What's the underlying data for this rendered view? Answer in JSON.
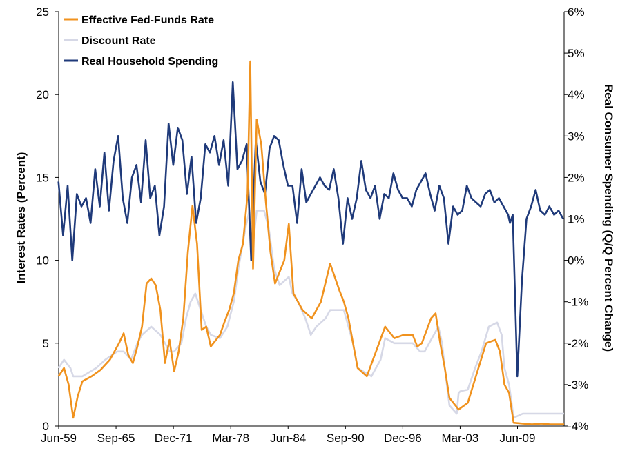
{
  "chart_data": {
    "type": "line",
    "title": "",
    "x_tick_labels": [
      "Jun-59",
      "Sep-65",
      "Dec-71",
      "Mar-78",
      "Jun-84",
      "Sep-90",
      "Dec-96",
      "Mar-03",
      "Jun-09"
    ],
    "x_range": [
      1959.42,
      2014.5
    ],
    "ylabel_left": "Interest Rates (Percent)",
    "ylabel_right": "Real Consumer Spending (Q/Q Percent Change)",
    "ylim_left": [
      0,
      25
    ],
    "ylim_right": [
      -4,
      6
    ],
    "y_ticks_left": [
      "0",
      "5",
      "10",
      "15",
      "20",
      "25"
    ],
    "y_ticks_right": [
      "-4%",
      "-3%",
      "-2%",
      "-1%",
      "0%",
      "1%",
      "2%",
      "3%",
      "4%",
      "5%",
      "6%"
    ],
    "grid": false,
    "legend_position": "top-left",
    "series": [
      {
        "name": "Effective Fed-Funds Rate",
        "axis": "left",
        "color": "#f0921e",
        "x": [
          1959.4,
          1960.0,
          1960.5,
          1961.0,
          1961.5,
          1962.0,
          1963.0,
          1964.0,
          1965.0,
          1965.5,
          1966.0,
          1966.5,
          1967.0,
          1967.5,
          1968.0,
          1968.5,
          1969.0,
          1969.5,
          1970.0,
          1970.5,
          1971.0,
          1971.5,
          1972.0,
          1972.5,
          1973.0,
          1973.5,
          1974.0,
          1974.5,
          1975.0,
          1975.5,
          1976.0,
          1977.0,
          1977.5,
          1978.0,
          1978.5,
          1979.0,
          1979.5,
          1980.0,
          1980.3,
          1980.6,
          1981.0,
          1981.5,
          1982.0,
          1982.5,
          1983.0,
          1983.5,
          1984.0,
          1984.5,
          1985.0,
          1986.0,
          1987.0,
          1988.0,
          1989.0,
          1989.5,
          1990.0,
          1990.5,
          1991.0,
          1991.5,
          1992.0,
          1993.0,
          1994.0,
          1995.0,
          1996.0,
          1997.0,
          1998.0,
          1998.5,
          1999.0,
          2000.0,
          2000.5,
          2001.0,
          2001.5,
          2002.0,
          2003.0,
          2004.0,
          2005.0,
          2006.0,
          2007.0,
          2007.5,
          2008.0,
          2008.5,
          2009.0,
          2010.0,
          2011.0,
          2012.0,
          2013.0,
          2014.0,
          2014.5
        ],
        "values": [
          3.0,
          3.5,
          2.5,
          0.5,
          1.8,
          2.7,
          3.0,
          3.4,
          4.0,
          4.5,
          5.0,
          5.6,
          4.3,
          3.8,
          4.8,
          6.0,
          8.6,
          8.9,
          8.5,
          7.0,
          3.8,
          5.2,
          3.3,
          4.5,
          6.5,
          10.5,
          13.3,
          11.0,
          5.8,
          6.0,
          4.8,
          5.5,
          6.3,
          7.0,
          8.0,
          10.0,
          11.0,
          14.0,
          22.0,
          9.5,
          18.5,
          17.0,
          13.5,
          10.5,
          8.6,
          9.3,
          10.0,
          12.2,
          8.0,
          7.0,
          6.5,
          7.5,
          9.8,
          9.0,
          8.2,
          7.5,
          6.5,
          5.0,
          3.5,
          3.0,
          4.5,
          6.0,
          5.3,
          5.5,
          5.5,
          4.8,
          5.0,
          6.5,
          6.8,
          5.0,
          3.5,
          1.7,
          1.0,
          1.4,
          3.2,
          5.0,
          5.2,
          4.5,
          2.5,
          2.0,
          0.2,
          0.15,
          0.1,
          0.15,
          0.1,
          0.1,
          0.1
        ]
      },
      {
        "name": "Discount Rate",
        "axis": "left",
        "color": "#d6d8e6",
        "x": [
          1959.4,
          1960.0,
          1960.7,
          1961.0,
          1962.0,
          1963.5,
          1964.5,
          1965.8,
          1966.5,
          1967.3,
          1968.0,
          1968.5,
          1969.5,
          1970.5,
          1971.0,
          1971.5,
          1972.0,
          1972.8,
          1973.3,
          1973.8,
          1974.3,
          1974.9,
          1975.5,
          1976.0,
          1977.0,
          1977.8,
          1978.5,
          1979.0,
          1979.8,
          1980.2,
          1980.6,
          1981.0,
          1981.8,
          1982.3,
          1982.9,
          1983.5,
          1984.5,
          1984.9,
          1985.5,
          1986.3,
          1986.9,
          1987.5,
          1988.5,
          1989.0,
          1989.5,
          1990.5,
          1991.0,
          1991.5,
          1992.0,
          1993.5,
          1994.5,
          1995.0,
          1996.0,
          1997.0,
          1998.0,
          1998.8,
          1999.3,
          1999.8,
          2000.3,
          2000.8,
          2001.2,
          2001.5,
          2002.0,
          2002.8,
          2003.0,
          2003.2,
          2004.0,
          2004.8,
          2005.5,
          2006.3,
          2007.2,
          2007.7,
          2008.0,
          2008.5,
          2009.0,
          2010.0,
          2010.5,
          2014.5
        ],
        "values": [
          3.5,
          4.0,
          3.5,
          3.0,
          3.0,
          3.5,
          4.0,
          4.5,
          4.5,
          4.0,
          5.0,
          5.5,
          6.0,
          5.5,
          5.0,
          4.5,
          4.5,
          5.0,
          6.5,
          7.5,
          8.0,
          7.0,
          6.0,
          5.5,
          5.3,
          6.0,
          7.5,
          9.5,
          12.0,
          13.0,
          11.0,
          13.0,
          13.0,
          12.0,
          9.5,
          8.5,
          9.0,
          8.0,
          7.5,
          6.5,
          5.5,
          6.0,
          6.5,
          7.0,
          7.0,
          7.0,
          6.0,
          5.0,
          3.5,
          3.0,
          4.0,
          5.3,
          5.0,
          5.0,
          5.0,
          4.5,
          4.5,
          5.0,
          5.5,
          6.0,
          5.0,
          3.5,
          1.25,
          0.75,
          2.0,
          2.1,
          2.2,
          3.5,
          4.5,
          6.0,
          6.25,
          5.5,
          3.5,
          2.5,
          0.5,
          0.75,
          0.75,
          0.75
        ]
      },
      {
        "name": "Real Household Spending",
        "axis": "right",
        "color": "#1f3a7a",
        "x": [
          1959.4,
          1959.9,
          1960.4,
          1960.9,
          1961.4,
          1961.9,
          1962.4,
          1962.9,
          1963.4,
          1963.9,
          1964.4,
          1964.9,
          1965.4,
          1965.9,
          1966.4,
          1966.9,
          1967.4,
          1967.9,
          1968.4,
          1968.9,
          1969.4,
          1969.9,
          1970.4,
          1970.9,
          1971.4,
          1971.9,
          1972.4,
          1972.9,
          1973.4,
          1973.9,
          1974.4,
          1974.9,
          1975.4,
          1975.9,
          1976.4,
          1976.9,
          1977.4,
          1977.9,
          1978.4,
          1978.9,
          1979.4,
          1979.9,
          1980.4,
          1980.9,
          1981.4,
          1981.9,
          1982.4,
          1982.9,
          1983.4,
          1983.9,
          1984.4,
          1984.9,
          1985.4,
          1985.9,
          1986.4,
          1986.9,
          1987.4,
          1987.9,
          1988.4,
          1988.9,
          1989.4,
          1989.9,
          1990.4,
          1990.9,
          1991.4,
          1991.9,
          1992.4,
          1992.9,
          1993.4,
          1993.9,
          1994.4,
          1994.9,
          1995.4,
          1995.9,
          1996.4,
          1996.9,
          1997.4,
          1997.9,
          1998.4,
          1998.9,
          1999.4,
          1999.9,
          2000.4,
          2000.9,
          2001.4,
          2001.9,
          2002.4,
          2002.9,
          2003.4,
          2003.9,
          2004.4,
          2004.9,
          2005.4,
          2005.9,
          2006.4,
          2006.9,
          2007.4,
          2007.9,
          2008.4,
          2008.6,
          2008.9,
          2009.4,
          2009.9,
          2010.4,
          2010.9,
          2011.4,
          2011.9,
          2012.4,
          2012.9,
          2013.4,
          2013.9,
          2014.4
        ],
        "values": [
          1.9,
          0.6,
          1.8,
          0.0,
          1.6,
          1.3,
          1.5,
          0.9,
          2.2,
          1.3,
          2.6,
          1.2,
          2.4,
          3.0,
          1.5,
          0.9,
          2.0,
          2.3,
          1.4,
          2.9,
          1.5,
          1.8,
          0.6,
          1.3,
          3.3,
          2.3,
          3.2,
          2.9,
          1.6,
          2.5,
          0.9,
          1.5,
          2.8,
          2.6,
          3.0,
          2.3,
          2.9,
          1.8,
          4.3,
          2.2,
          2.4,
          2.8,
          0.0,
          2.9,
          1.9,
          1.6,
          2.7,
          3.0,
          2.9,
          2.3,
          1.8,
          1.8,
          0.9,
          2.2,
          1.4,
          1.6,
          1.8,
          2.0,
          1.8,
          1.7,
          2.2,
          1.5,
          0.4,
          1.5,
          1.0,
          1.5,
          2.4,
          1.7,
          1.5,
          1.8,
          1.0,
          1.6,
          1.5,
          2.1,
          1.7,
          1.5,
          1.5,
          1.3,
          1.7,
          1.9,
          2.1,
          1.6,
          1.2,
          1.8,
          1.5,
          0.4,
          1.3,
          1.1,
          1.2,
          1.8,
          1.5,
          1.4,
          1.3,
          1.6,
          1.7,
          1.4,
          1.5,
          1.3,
          1.1,
          0.9,
          1.1,
          -2.8,
          -0.5,
          1.0,
          1.3,
          1.7,
          1.2,
          1.1,
          1.3,
          1.1,
          1.2,
          1.0
        ]
      }
    ]
  }
}
